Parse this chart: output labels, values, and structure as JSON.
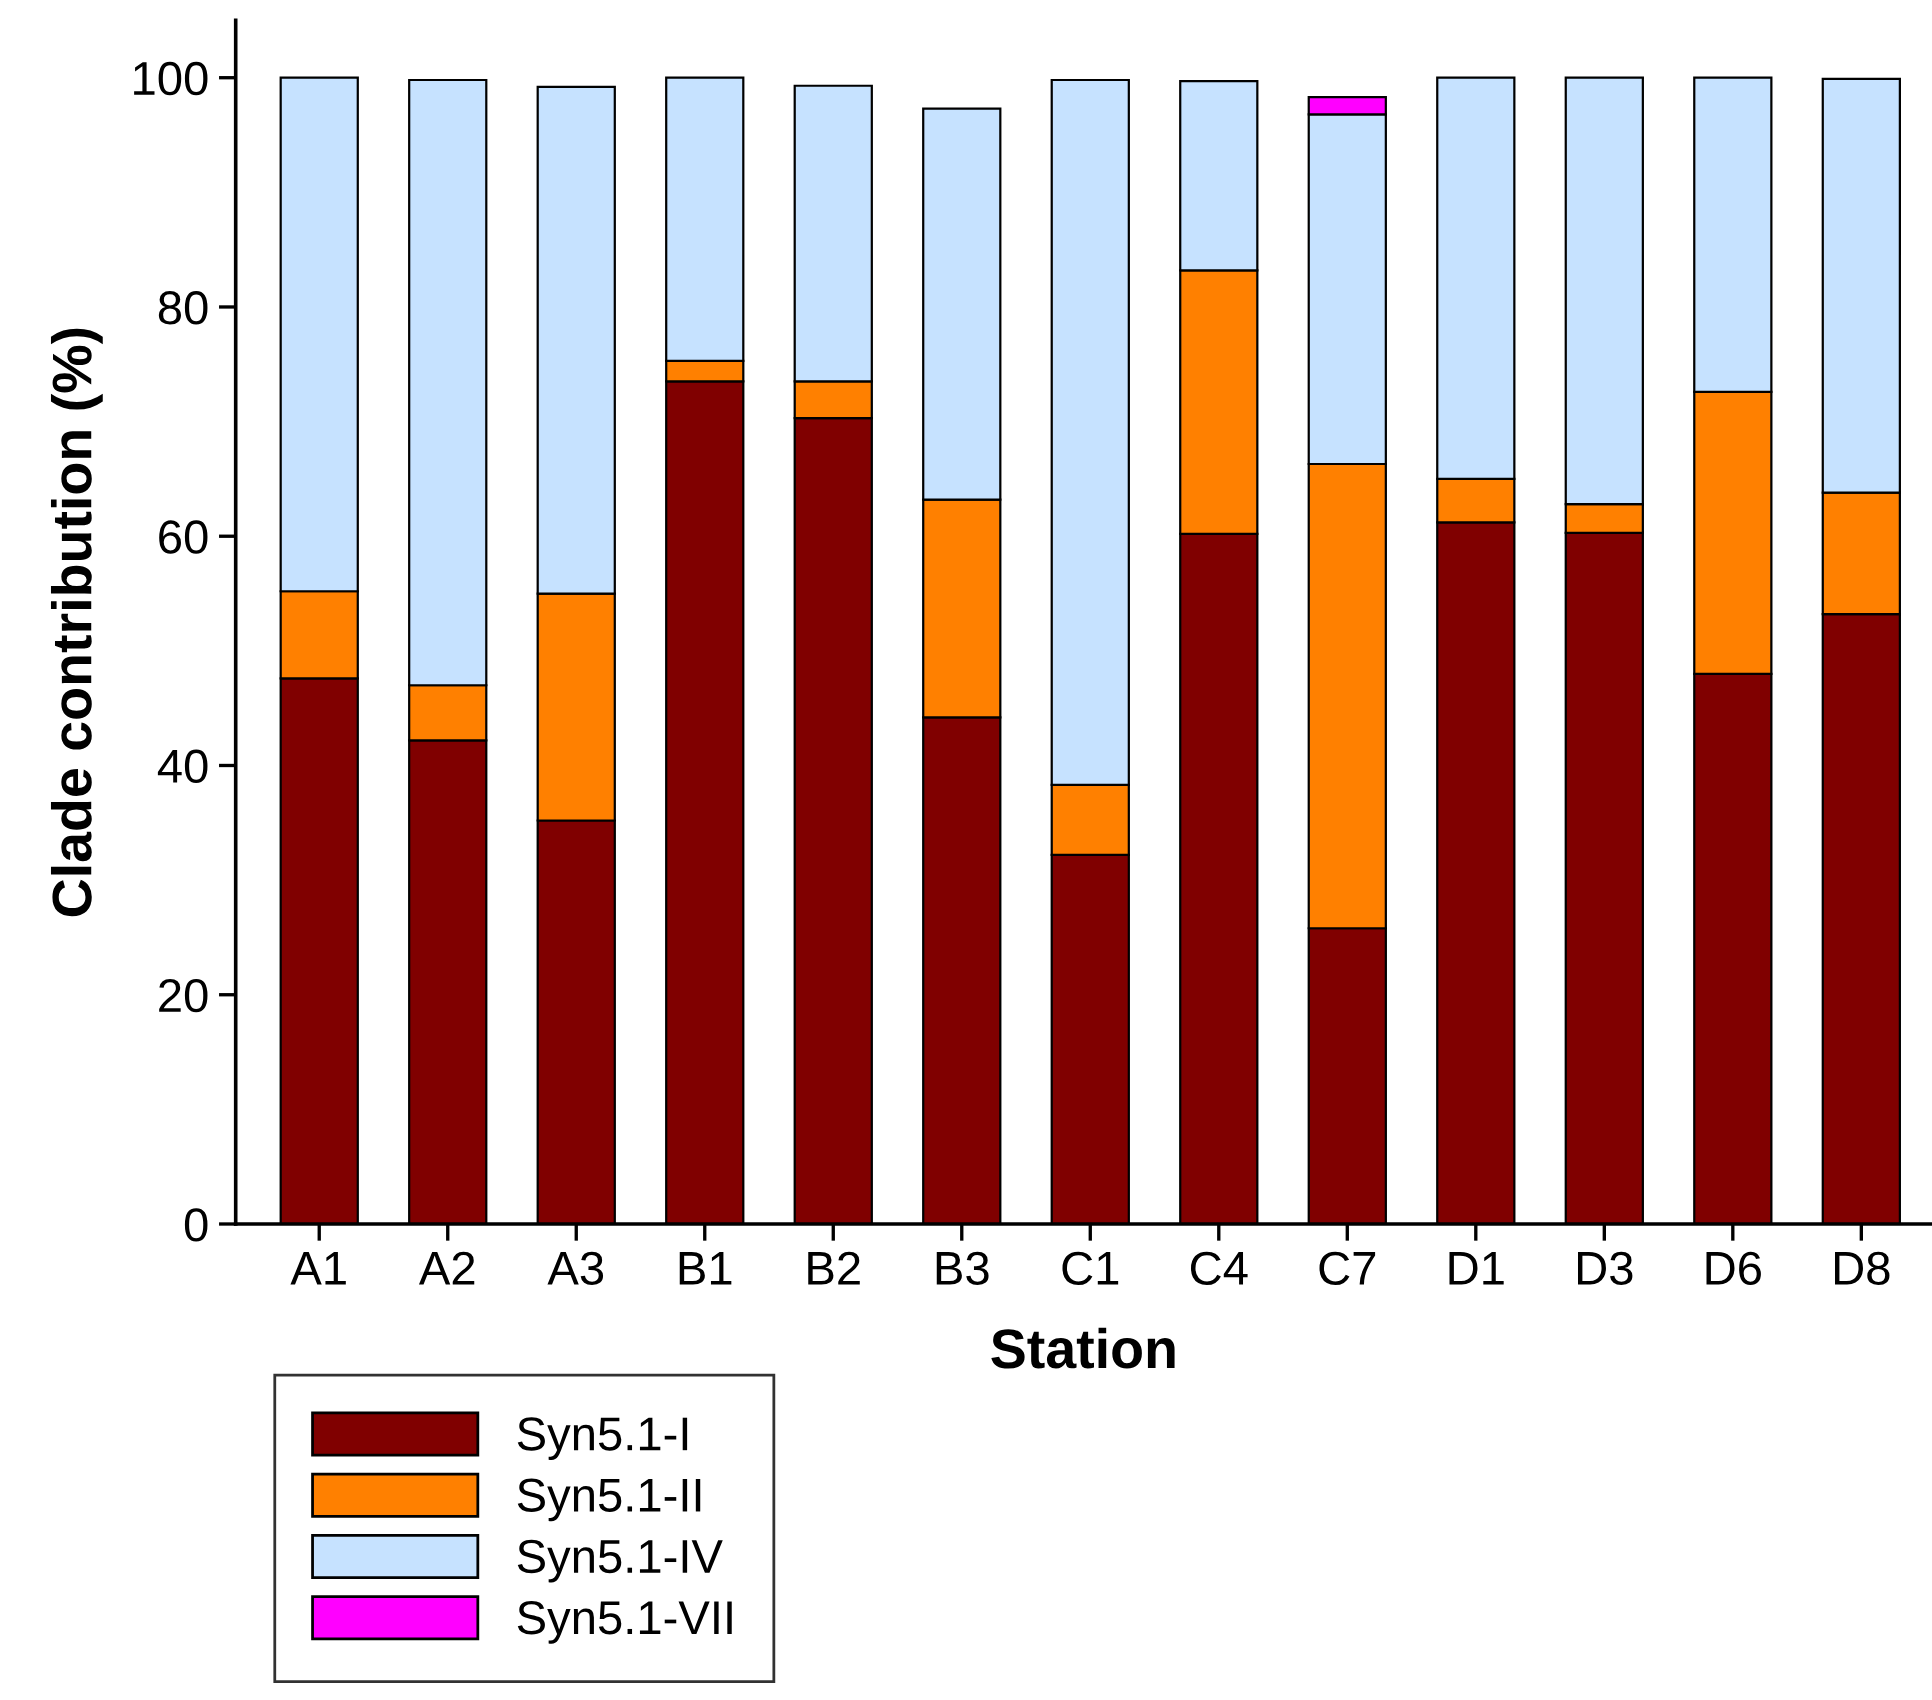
{
  "chart_data": {
    "type": "bar",
    "stacked": true,
    "xlabel": "Station",
    "ylabel": "Clade contribution (%)",
    "categories": [
      "A1",
      "A2",
      "A3",
      "B1",
      "B2",
      "B3",
      "C1",
      "C4",
      "C7",
      "D1",
      "D3",
      "D6",
      "D8"
    ],
    "series": [
      {
        "name": "Syn5.1-I",
        "color": "#800000",
        "values": [
          47.6,
          42.2,
          35.2,
          73.5,
          70.3,
          44.2,
          32.2,
          60.2,
          25.8,
          61.2,
          60.3,
          48.0,
          53.2
        ]
      },
      {
        "name": "Syn5.1-II",
        "color": "#ff8000",
        "values": [
          7.6,
          4.8,
          19.8,
          1.8,
          3.2,
          19.0,
          6.1,
          23.0,
          40.5,
          3.8,
          2.5,
          24.6,
          10.6
        ]
      },
      {
        "name": "Syn5.1-IV",
        "color": "#c6e2ff",
        "values": [
          44.8,
          52.8,
          44.2,
          24.7,
          25.8,
          34.1,
          61.5,
          16.5,
          30.5,
          35.0,
          37.2,
          27.4,
          36.1
        ]
      },
      {
        "name": "Syn5.1-VII",
        "color": "#ff00ff",
        "values": [
          null,
          null,
          null,
          null,
          null,
          null,
          null,
          null,
          1.5,
          null,
          null,
          null,
          null
        ]
      }
    ],
    "ylim": [
      0,
      105
    ],
    "yticks": [
      0,
      20,
      40,
      60,
      80,
      100
    ],
    "grid": false,
    "legend": "bottom left"
  }
}
